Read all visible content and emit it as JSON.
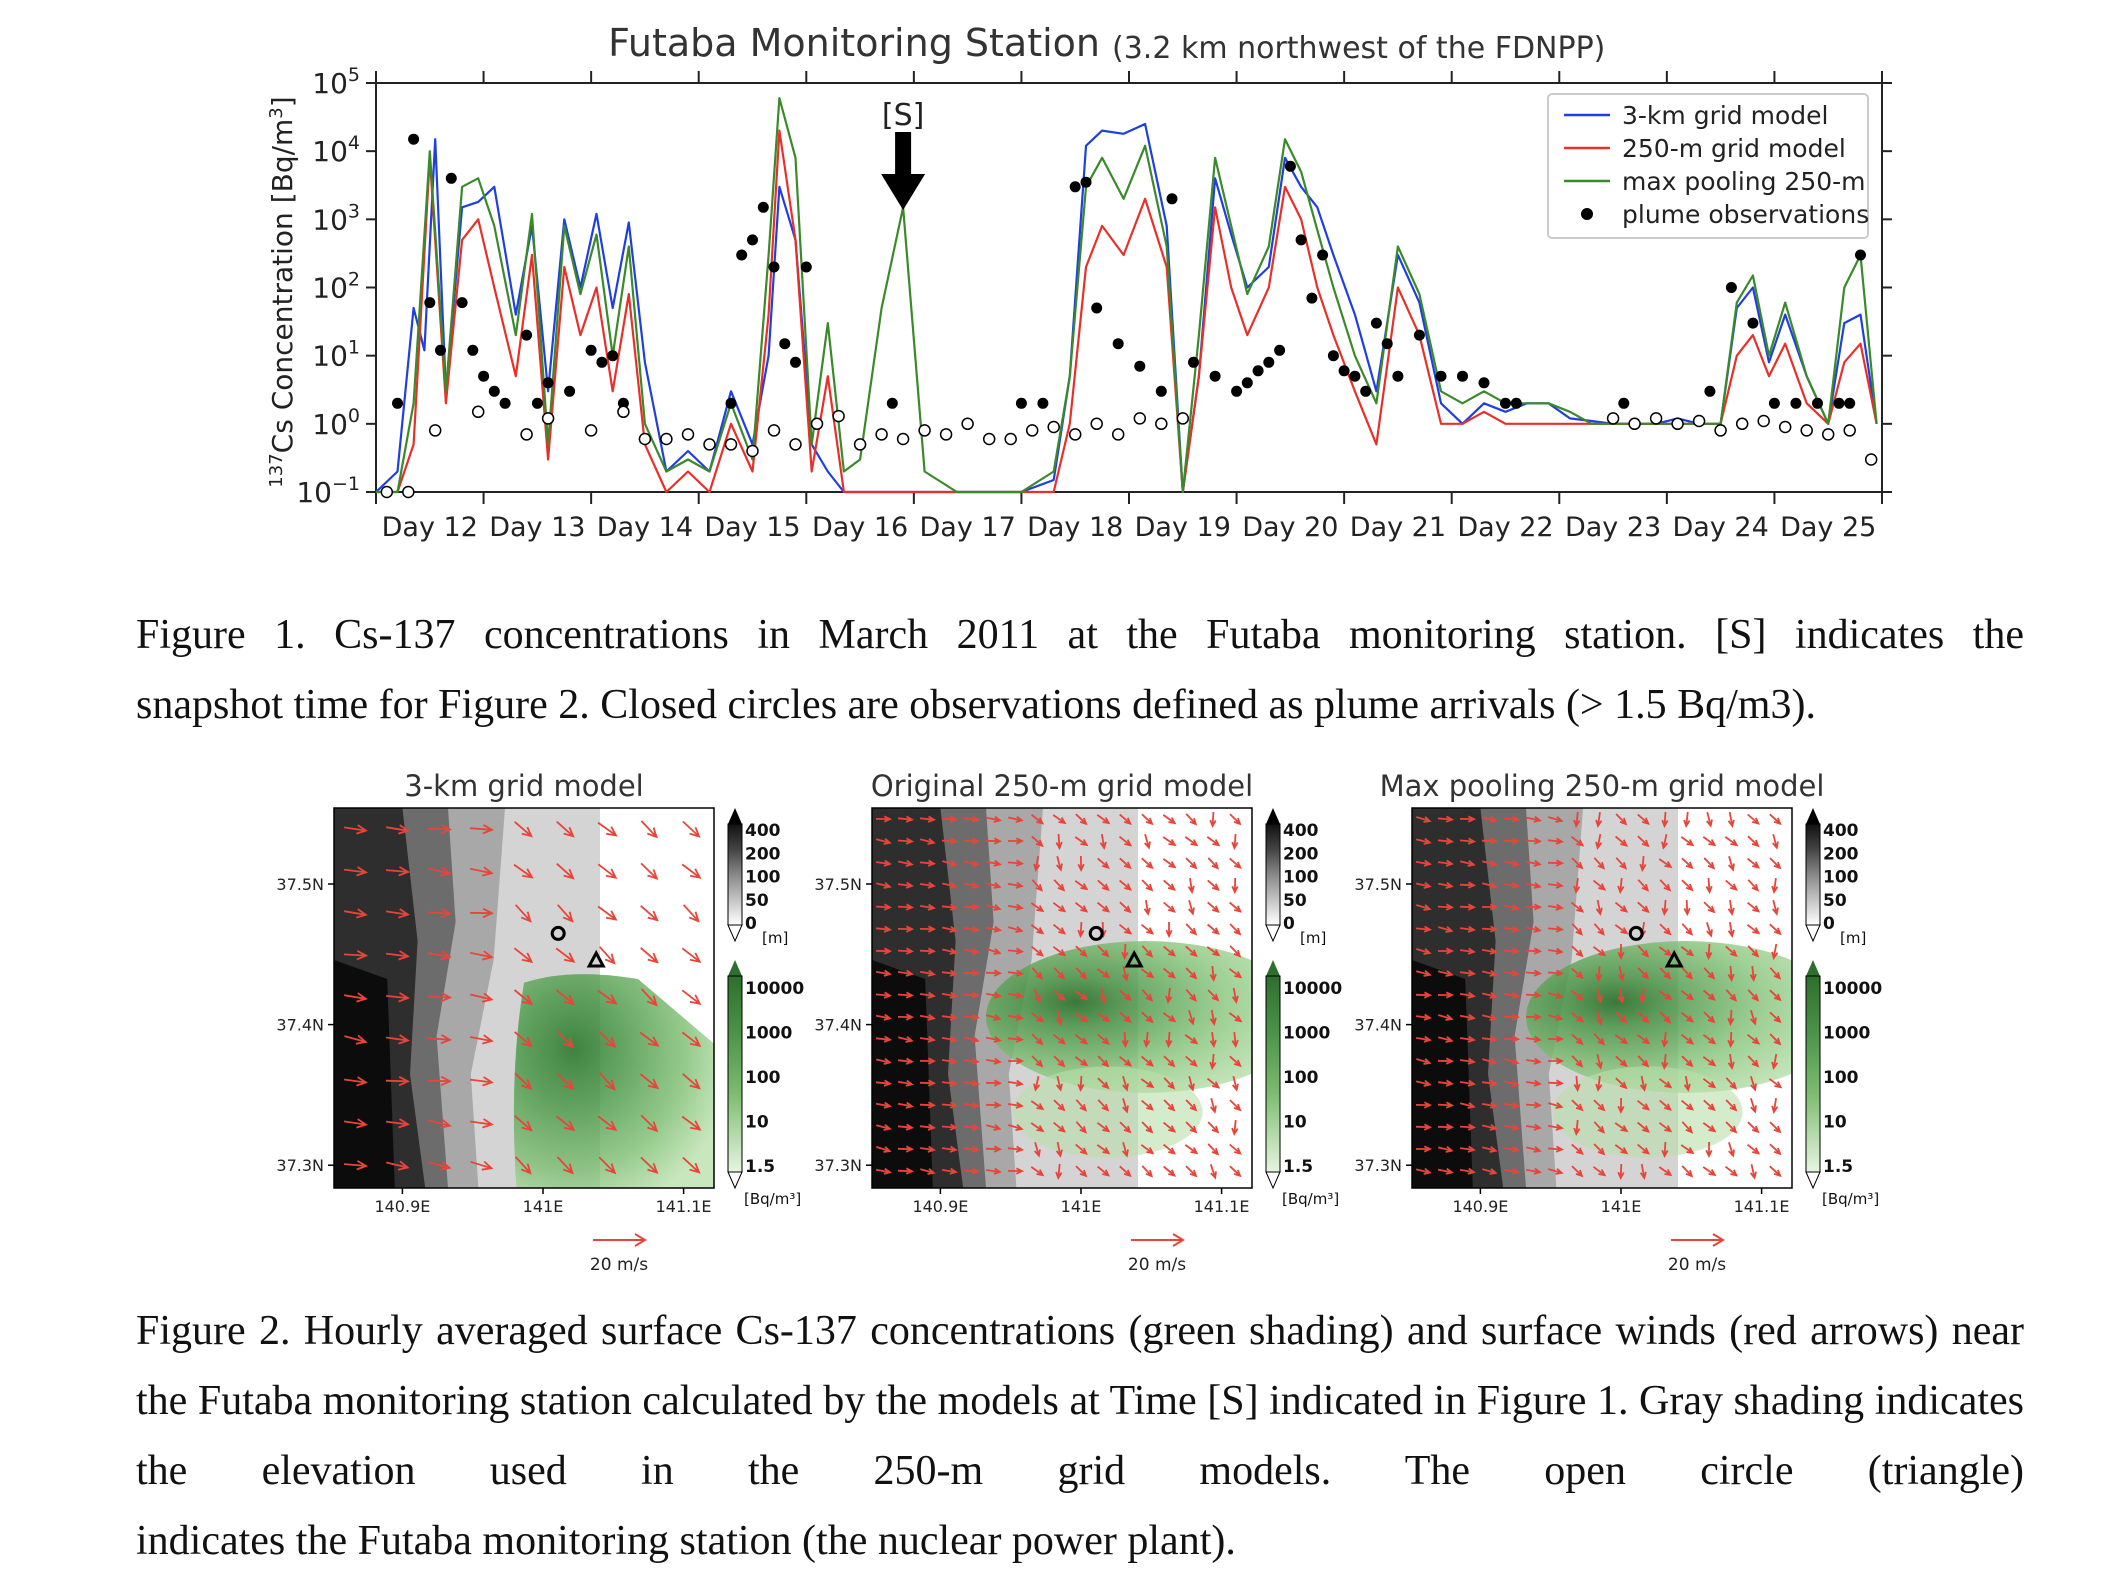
{
  "figure1": {
    "title": "Futaba Monitoring Station",
    "subtitle": "(3.2 km northwest of the FDNPP)",
    "annotation": "[S]",
    "caption_lines": [
      "Figure 1. Cs-137 concentrations in March 2011 at the Futaba monitoring station. [S] indicates the",
      "snapshot time for Figure 2. Closed circles are observations defined as plume arrivals (> 1.5 Bq/m3)."
    ]
  },
  "figure2": {
    "panel_titles": [
      "3-km grid model",
      "Original 250-m grid model",
      "Max pooling 250-m grid model"
    ],
    "lat_ticks": [
      "37.5N",
      "37.4N",
      "37.3N"
    ],
    "lon_ticks": [
      "140.9E",
      "141E",
      "141.1E"
    ],
    "elev_labels": [
      "400",
      "200",
      "100",
      "50",
      "0"
    ],
    "elev_unit": "[m]",
    "conc_labels": [
      "10000",
      "1000",
      "100",
      "10",
      "1.5"
    ],
    "conc_unit": "[Bq/m³]",
    "wind_ref": "20 m/s",
    "caption_lines": [
      "Figure 2. Hourly averaged surface Cs-137 concentrations (green shading) and surface winds (red",
      "arrows) near the Futaba monitoring station calculated by the models at Time [S] indicated in Figure 1.",
      "Gray shading indicates the elevation used in the 250-m grid models. The open circle (triangle)",
      "indicates the Futaba monitoring station (the nuclear power plant)."
    ]
  },
  "chart_data": {
    "type": "line",
    "title": "Futaba Monitoring Station",
    "subtitle": "(3.2 km northwest of the FDNPP)",
    "ylabel": "137Cs Concentration [Bq/m3]",
    "yscale": "log",
    "ylim": [
      0.1,
      100000
    ],
    "y_ticks": [
      "10−1",
      "100",
      "101",
      "102",
      "103",
      "104",
      "105"
    ],
    "xlim": [
      11.5,
      25.5
    ],
    "x_tick_labels": [
      "Day 12",
      "Day 13",
      "Day 14",
      "Day 15",
      "Day 16",
      "Day 17",
      "Day 18",
      "Day 19",
      "Day 20",
      "Day 21",
      "Day 22",
      "Day 23",
      "Day 24",
      "Day 25"
    ],
    "legend_position": "top-right",
    "annotation": {
      "text": "[S]",
      "x": 16.4
    },
    "series": [
      {
        "name": "3-km grid model",
        "color": "#1f3fe0",
        "x": [
          11.5,
          11.7,
          11.85,
          11.95,
          12.05,
          12.15,
          12.3,
          12.45,
          12.6,
          12.8,
          12.95,
          13.1,
          13.25,
          13.4,
          13.55,
          13.7,
          13.85,
          14.0,
          14.2,
          14.4,
          14.6,
          14.8,
          15.0,
          15.15,
          15.25,
          15.4,
          15.55,
          15.7,
          15.85,
          16.0,
          16.3,
          16.6,
          16.9,
          17.2,
          17.5,
          17.8,
          17.95,
          18.1,
          18.25,
          18.45,
          18.65,
          18.85,
          19.0,
          19.15,
          19.3,
          19.45,
          19.6,
          19.8,
          19.95,
          20.1,
          20.25,
          20.4,
          20.6,
          20.8,
          21.0,
          21.2,
          21.4,
          21.6,
          21.8,
          22.0,
          22.2,
          22.4,
          22.6,
          22.8,
          23.0,
          23.2,
          23.4,
          23.6,
          23.8,
          24.0,
          24.15,
          24.3,
          24.45,
          24.6,
          24.8,
          25.0,
          25.15,
          25.3,
          25.45
        ],
        "y": [
          0.1,
          0.2,
          50,
          12,
          15000,
          3,
          1500,
          1800,
          3000,
          40,
          800,
          3,
          1000,
          100,
          1200,
          50,
          900,
          8,
          0.2,
          0.4,
          0.2,
          3,
          0.5,
          10,
          3000,
          500,
          0.5,
          0.2,
          0.1,
          0.1,
          0.1,
          0.1,
          0.1,
          0.1,
          0.1,
          0.15,
          5,
          12000,
          20000,
          18000,
          25000,
          800,
          0.1,
          5,
          4000,
          600,
          100,
          200,
          8000,
          3000,
          1500,
          300,
          40,
          3,
          300,
          60,
          2,
          1,
          2,
          1.5,
          2,
          2,
          1.2,
          1.1,
          1,
          1,
          1,
          1.2,
          1,
          1,
          50,
          100,
          8,
          40,
          5,
          1,
          30,
          40,
          1
        ]
      },
      {
        "name": "250-m grid model",
        "color": "#e8302a",
        "x": [
          11.5,
          11.7,
          11.85,
          12.0,
          12.15,
          12.3,
          12.45,
          12.6,
          12.8,
          12.95,
          13.1,
          13.25,
          13.4,
          13.55,
          13.7,
          13.85,
          14.0,
          14.2,
          14.4,
          14.6,
          14.8,
          15.0,
          15.15,
          15.25,
          15.4,
          15.55,
          15.7,
          15.85,
          16.0,
          16.3,
          16.6,
          16.9,
          17.2,
          17.5,
          17.8,
          17.95,
          18.1,
          18.25,
          18.45,
          18.65,
          18.85,
          19.0,
          19.15,
          19.3,
          19.45,
          19.6,
          19.8,
          19.95,
          20.1,
          20.25,
          20.4,
          20.6,
          20.8,
          21.0,
          21.2,
          21.4,
          21.6,
          21.8,
          22.0,
          22.2,
          22.4,
          22.6,
          22.8,
          23.0,
          23.2,
          23.4,
          23.6,
          23.8,
          24.0,
          24.15,
          24.3,
          24.45,
          24.6,
          24.8,
          25.0,
          25.15,
          25.3,
          25.45
        ],
        "y": [
          0.1,
          0.1,
          0.5,
          8000,
          2,
          500,
          1000,
          100,
          5,
          300,
          0.3,
          200,
          20,
          100,
          3,
          80,
          0.5,
          0.1,
          0.2,
          0.1,
          1,
          0.2,
          40,
          20000,
          500,
          0.2,
          5,
          0.1,
          0.1,
          0.1,
          0.1,
          0.1,
          0.1,
          0.1,
          0.1,
          1,
          200,
          800,
          300,
          2000,
          200,
          0.1,
          5,
          1500,
          100,
          20,
          100,
          3000,
          1000,
          100,
          20,
          3,
          0.5,
          100,
          20,
          1,
          1,
          1.5,
          1,
          1,
          1,
          1,
          1,
          1,
          1,
          1,
          1,
          1,
          1,
          10,
          20,
          5,
          15,
          2,
          1,
          8,
          15,
          1
        ]
      },
      {
        "name": "max pooling 250-m",
        "color": "#3a8a2a",
        "x": [
          11.5,
          11.7,
          11.85,
          12.0,
          12.15,
          12.3,
          12.45,
          12.6,
          12.8,
          12.95,
          13.1,
          13.25,
          13.4,
          13.55,
          13.7,
          13.85,
          14.0,
          14.2,
          14.4,
          14.6,
          14.8,
          15.0,
          15.15,
          15.25,
          15.4,
          15.55,
          15.7,
          15.85,
          16.0,
          16.2,
          16.4,
          16.6,
          16.9,
          17.2,
          17.5,
          17.8,
          17.95,
          18.1,
          18.25,
          18.45,
          18.65,
          18.85,
          19.0,
          19.15,
          19.3,
          19.45,
          19.6,
          19.8,
          19.95,
          20.1,
          20.25,
          20.4,
          20.6,
          20.8,
          21.0,
          21.2,
          21.4,
          21.6,
          21.8,
          22.0,
          22.2,
          22.4,
          22.6,
          22.8,
          23.0,
          23.2,
          23.4,
          23.6,
          23.8,
          24.0,
          24.15,
          24.3,
          24.45,
          24.6,
          24.8,
          25.0,
          25.15,
          25.3,
          25.45
        ],
        "y": [
          0.1,
          0.1,
          2,
          10000,
          3,
          3000,
          4000,
          800,
          20,
          1200,
          0.5,
          800,
          80,
          600,
          10,
          400,
          1,
          0.2,
          0.3,
          0.2,
          2,
          0.3,
          300,
          60000,
          8000,
          0.5,
          30,
          0.2,
          0.3,
          50,
          1500,
          0.2,
          0.1,
          0.1,
          0.1,
          0.2,
          5,
          3000,
          8000,
          2000,
          12000,
          400,
          0.1,
          20,
          8000,
          800,
          80,
          400,
          15000,
          5000,
          700,
          100,
          10,
          2,
          400,
          80,
          3,
          2,
          3,
          2,
          2,
          2,
          1.5,
          1,
          1,
          1,
          1,
          1,
          1,
          1,
          60,
          150,
          10,
          60,
          5,
          1,
          100,
          300,
          1
        ]
      },
      {
        "name": "plume observations",
        "style": "closed-circles",
        "color": "#000000",
        "x": [
          11.7,
          11.85,
          12.0,
          12.1,
          12.2,
          12.3,
          12.4,
          12.5,
          12.6,
          12.7,
          12.9,
          13.0,
          13.1,
          13.3,
          13.5,
          13.6,
          13.7,
          13.8,
          14.8,
          14.9,
          15.0,
          15.1,
          15.2,
          15.3,
          15.4,
          15.5,
          16.3,
          17.5,
          17.7,
          18.0,
          18.1,
          18.2,
          18.4,
          18.6,
          18.8,
          18.9,
          19.1,
          19.3,
          19.5,
          19.6,
          19.7,
          19.8,
          19.9,
          20.0,
          20.1,
          20.2,
          20.3,
          20.4,
          20.5,
          20.6,
          20.7,
          20.8,
          20.9,
          21.0,
          21.2,
          21.4,
          21.6,
          21.8,
          22.0,
          22.1,
          23.1,
          23.9,
          24.1,
          24.3,
          24.5,
          24.7,
          24.9,
          25.1,
          25.2,
          25.3
        ],
        "y": [
          2,
          15000,
          60,
          12,
          4000,
          60,
          12,
          5,
          3,
          2,
          20,
          2,
          4,
          3,
          12,
          8,
          10,
          2,
          2,
          300,
          500,
          1500,
          200,
          15,
          8,
          200,
          2,
          2,
          2,
          3000,
          3500,
          50,
          15,
          7,
          3,
          2000,
          8,
          5,
          3,
          4,
          6,
          8,
          12,
          6000,
          500,
          70,
          300,
          10,
          6,
          5,
          3,
          30,
          15,
          5,
          20,
          5,
          5,
          4,
          2,
          2,
          2,
          3,
          100,
          30,
          2,
          2,
          2,
          2,
          2,
          300
        ]
      },
      {
        "name": "open circles",
        "style": "open-circles",
        "color": "#000000",
        "x": [
          11.6,
          11.8,
          12.05,
          12.45,
          12.9,
          13.1,
          13.5,
          13.8,
          14.0,
          14.2,
          14.4,
          14.6,
          14.8,
          15.0,
          15.2,
          15.4,
          15.6,
          15.8,
          16.0,
          16.2,
          16.4,
          16.6,
          16.8,
          17.0,
          17.2,
          17.4,
          17.6,
          17.8,
          18.0,
          18.2,
          18.4,
          18.6,
          18.8,
          19.0,
          23.0,
          23.2,
          23.4,
          23.6,
          23.8,
          24.0,
          24.2,
          24.4,
          24.6,
          24.8,
          25.0,
          25.2,
          25.4
        ],
        "y": [
          0.1,
          0.1,
          0.8,
          1.5,
          0.7,
          1.2,
          0.8,
          1.5,
          0.6,
          0.6,
          0.7,
          0.5,
          0.5,
          0.4,
          0.8,
          0.5,
          1,
          1.3,
          0.5,
          0.7,
          0.6,
          0.8,
          0.7,
          1,
          0.6,
          0.6,
          0.8,
          0.9,
          0.7,
          1,
          0.7,
          1.2,
          1,
          1.2,
          1.2,
          1,
          1.2,
          1,
          1.1,
          0.8,
          1,
          1.1,
          0.9,
          0.8,
          0.7,
          0.8,
          0.3
        ]
      }
    ]
  }
}
